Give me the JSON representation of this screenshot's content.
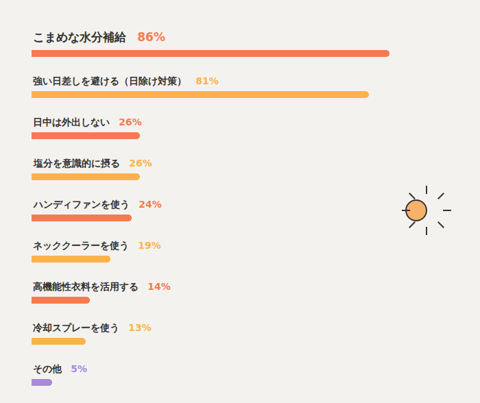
{
  "chart_data": {
    "type": "bar",
    "orientation": "horizontal",
    "categories": [
      "こまめな水分補給",
      "強い日差しを避ける（日除け対策）",
      "日中は外出しない",
      "塩分を意識的に摂る",
      "ハンディファンを使う",
      "ネッククーラーを使う",
      "高機能性衣料を活用する",
      "冷却スプレーを使う",
      "その他"
    ],
    "values": [
      86,
      81,
      26,
      26,
      24,
      19,
      14,
      13,
      5
    ],
    "value_labels": [
      "86%",
      "81%",
      "26%",
      "26%",
      "24%",
      "19%",
      "14%",
      "13%",
      "5%"
    ],
    "colors": [
      "#f47b4f",
      "#fbb24c",
      "#f47b4f",
      "#fbb24c",
      "#f47b4f",
      "#fbb24c",
      "#f47b4f",
      "#fbb24c",
      "#a98bd8"
    ],
    "data_labels": true,
    "tick_labels": false,
    "grid": false,
    "xlim": [
      0,
      100
    ]
  }
}
